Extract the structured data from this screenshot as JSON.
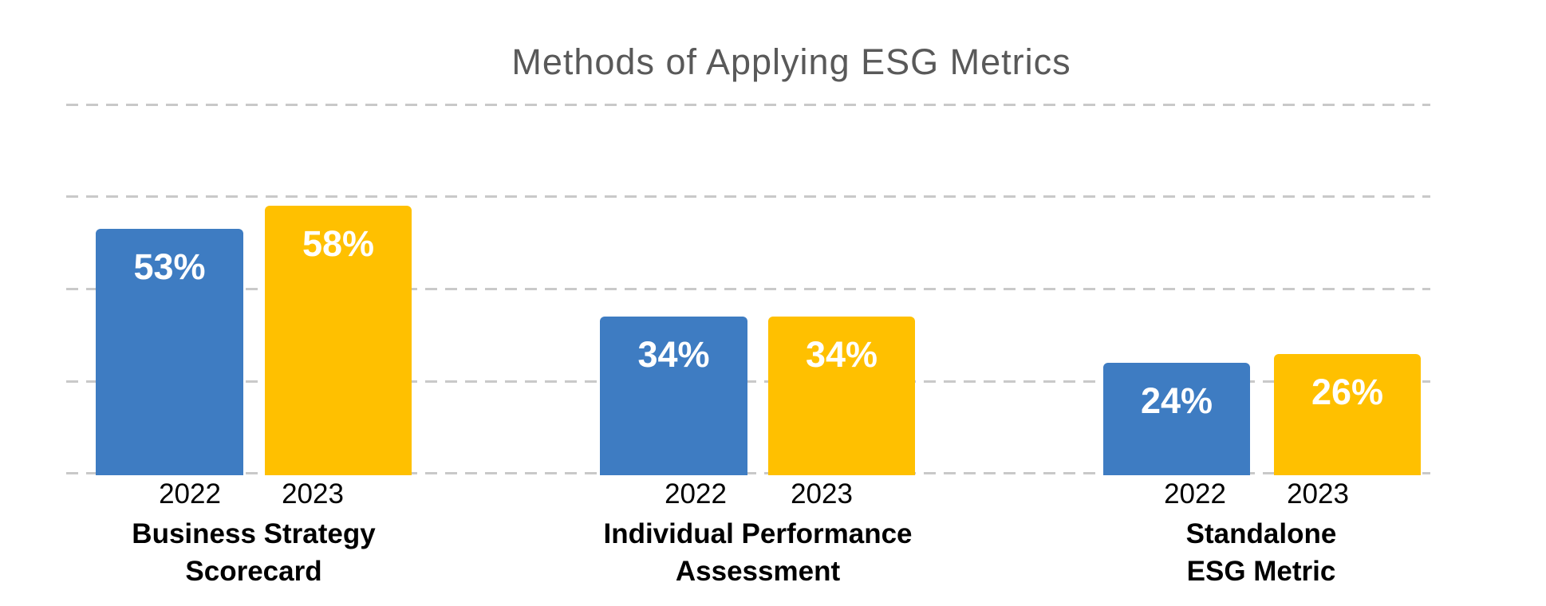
{
  "chart_data": {
    "type": "bar",
    "title": "Methods of Applying ESG Metrics",
    "categories": [
      "Business Strategy Scorecard",
      "Individual Performance Assessment",
      "Standalone ESG Metric"
    ],
    "series": [
      {
        "name": "2022",
        "color": "#3E7CC2",
        "values": [
          53,
          34,
          24
        ],
        "labels": [
          "53%",
          "34%",
          "24%"
        ]
      },
      {
        "name": "2023",
        "color": "#FFC000",
        "values": [
          58,
          34,
          26
        ],
        "labels": [
          "58%",
          "34%",
          "26%"
        ]
      }
    ],
    "unit": "percent",
    "ylim": [
      0,
      80
    ],
    "gridline_values": [
      0,
      20,
      40,
      60,
      80
    ],
    "grid": "horizontal dashed lines, no visible y-axis tick labels",
    "legend_position": "none (years labeled beneath each bar)",
    "value_labels_position": "inside top of bars, white bold"
  },
  "group_labels": [
    {
      "line1": "Business Strategy",
      "line2": "Scorecard"
    },
    {
      "line1": "Individual Performance",
      "line2": "Assessment"
    },
    {
      "line1": "Standalone",
      "line2": "ESG Metric"
    }
  ],
  "colors": {
    "series_2022": "#3E7CC2",
    "series_2023": "#FFC000",
    "title_text": "#595959",
    "gridline": "#C9C9C9",
    "axis_text": "#000000",
    "value_label_text": "#FFFFFF",
    "background": "#FFFFFF"
  }
}
